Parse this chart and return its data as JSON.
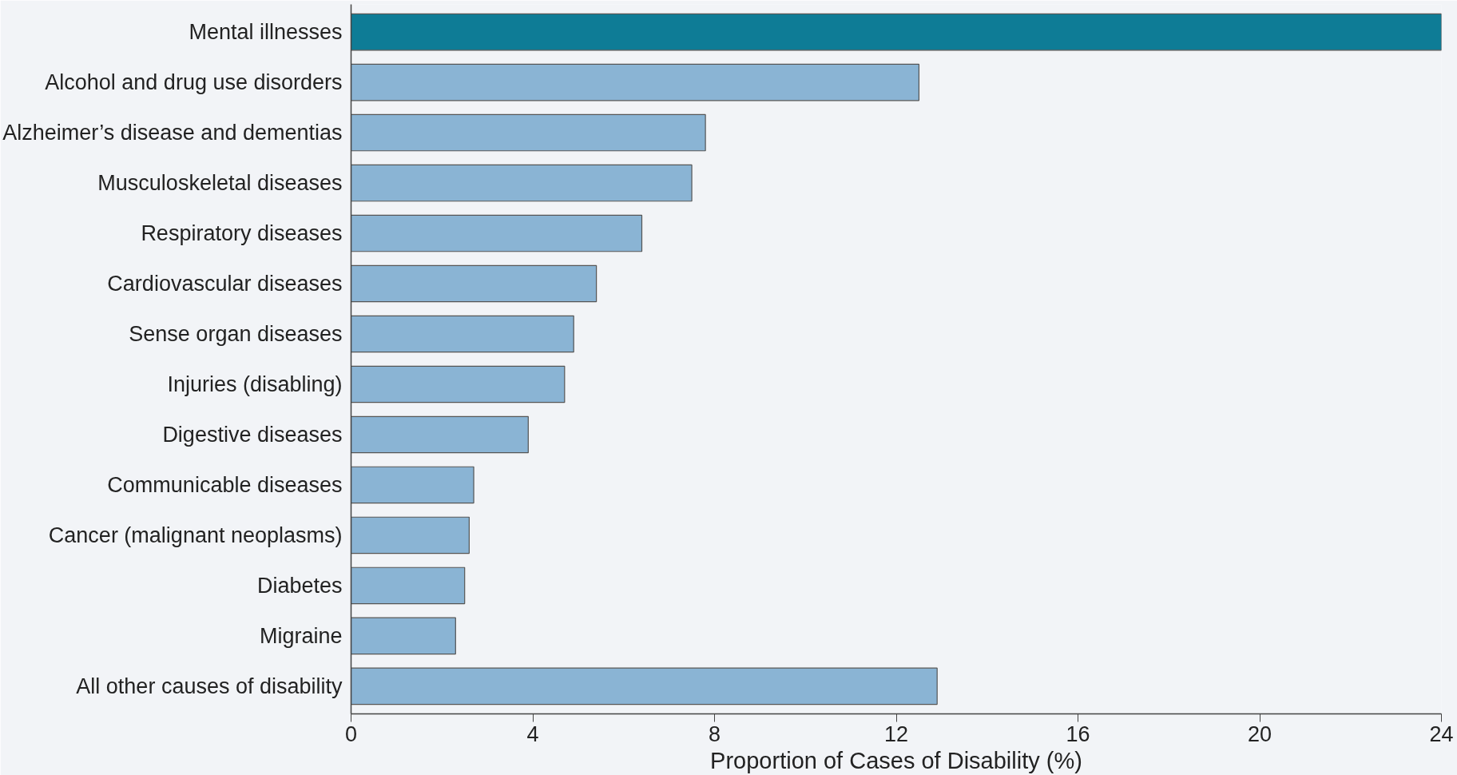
{
  "chart_data": {
    "type": "bar",
    "orientation": "horizontal",
    "xlabel": "Proportion of Cases of Disability (%)",
    "categories": [
      "Mental illnesses",
      "Alcohol and drug use disorders",
      "Alzheimer’s disease and dementias",
      "Musculoskeletal diseases",
      "Respiratory diseases",
      "Cardiovascular diseases",
      "Sense organ diseases",
      "Injuries (disabling)",
      "Digestive diseases",
      "Communicable diseases",
      "Cancer (malignant neoplasms)",
      "Diabetes",
      "Migraine",
      "All other causes of disability"
    ],
    "values": [
      24.0,
      12.5,
      7.8,
      7.5,
      6.4,
      5.4,
      4.9,
      4.7,
      3.9,
      2.7,
      2.6,
      2.5,
      2.3,
      12.9
    ],
    "colors": [
      "#0e7c96",
      "#8ab4d4",
      "#8ab4d4",
      "#8ab4d4",
      "#8ab4d4",
      "#8ab4d4",
      "#8ab4d4",
      "#8ab4d4",
      "#8ab4d4",
      "#8ab4d4",
      "#8ab4d4",
      "#8ab4d4",
      "#8ab4d4",
      "#8ab4d4"
    ],
    "xlim": [
      0,
      24
    ],
    "xticks": [
      0,
      4,
      8,
      12,
      16,
      20,
      24
    ],
    "grid": false
  }
}
